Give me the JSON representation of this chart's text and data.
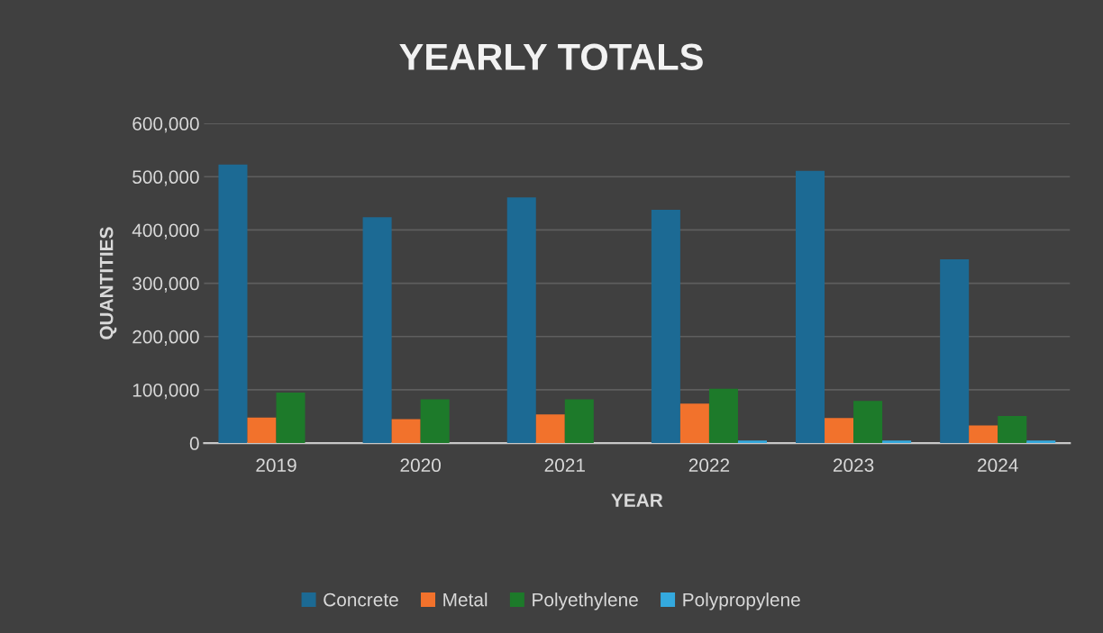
{
  "chart_data": {
    "type": "bar",
    "title": "YEARLY TOTALS",
    "xlabel": "YEAR",
    "ylabel": "QUANTITIES",
    "categories": [
      "2019",
      "2020",
      "2021",
      "2022",
      "2023",
      "2024"
    ],
    "series": [
      {
        "name": "Concrete",
        "color": "#1c6a94",
        "values": [
          523000,
          424000,
          461000,
          438000,
          511000,
          345000
        ]
      },
      {
        "name": "Metal",
        "color": "#f2722c",
        "values": [
          48000,
          45000,
          54000,
          74000,
          47000,
          33000
        ]
      },
      {
        "name": "Polyethylene",
        "color": "#1d7a2a",
        "values": [
          95000,
          82000,
          82000,
          102000,
          79000,
          51000
        ]
      },
      {
        "name": "Polypropylene",
        "color": "#34a9de",
        "values": [
          null,
          null,
          null,
          5000,
          5000,
          5000
        ]
      }
    ],
    "ylim": [
      0,
      600000
    ],
    "yticks": [
      {
        "value": 0,
        "label": "0"
      },
      {
        "value": 100000,
        "label": "100,000"
      },
      {
        "value": 200000,
        "label": "200,000"
      },
      {
        "value": 300000,
        "label": "300,000"
      },
      {
        "value": 400000,
        "label": "400,000"
      },
      {
        "value": 500000,
        "label": "500,000"
      },
      {
        "value": 600000,
        "label": "600,000"
      }
    ],
    "grid": "y",
    "legend": "bottom"
  }
}
